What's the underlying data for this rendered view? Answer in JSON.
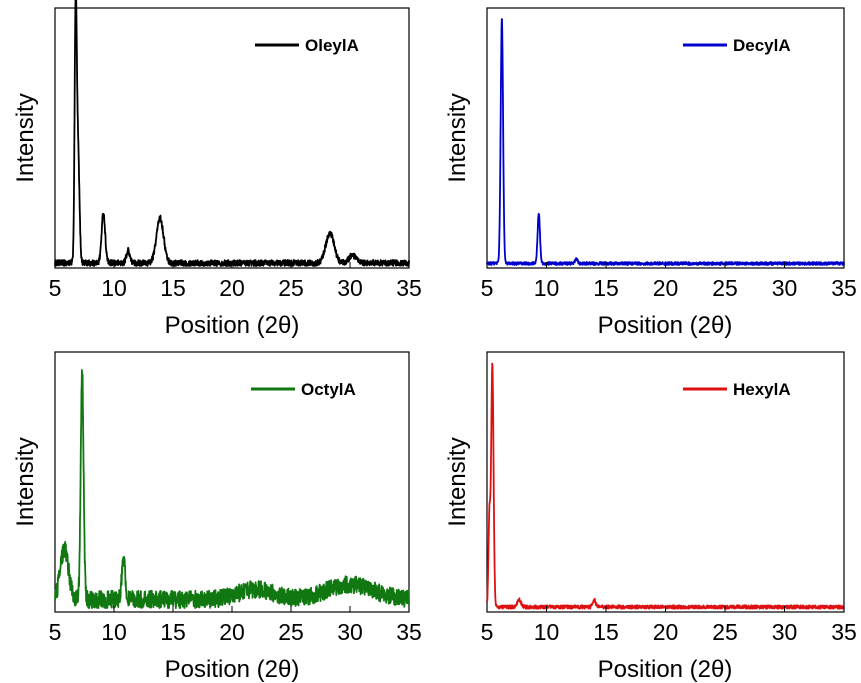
{
  "chart_data": [
    {
      "type": "line",
      "xlabel": "Position (2θ)",
      "ylabel": "Intensity",
      "xlim": [
        5,
        35
      ],
      "ylim": [
        0,
        1
      ],
      "x_ticks": [
        5,
        10,
        15,
        20,
        25,
        30,
        35
      ],
      "y_ticks_shown": false,
      "grid": false,
      "legend_position": "top-right",
      "series": [
        {
          "name": "OleylA",
          "color": "#000000",
          "baseline": 0.02,
          "noise": 0.012,
          "peaks": [
            {
              "x": 6.75,
              "y": 0.98,
              "w": 0.09
            },
            {
              "x": 6.95,
              "y": 0.45,
              "w": 0.12
            },
            {
              "x": 9.1,
              "y": 0.2,
              "w": 0.15
            },
            {
              "x": 11.2,
              "y": 0.05,
              "w": 0.15
            },
            {
              "x": 13.9,
              "y": 0.18,
              "w": 0.3
            },
            {
              "x": 28.3,
              "y": 0.12,
              "w": 0.35
            },
            {
              "x": 30.2,
              "y": 0.03,
              "w": 0.3
            }
          ]
        }
      ]
    },
    {
      "type": "line",
      "xlabel": "Position (2θ)",
      "ylabel": "Intensity",
      "xlim": [
        5,
        35
      ],
      "ylim": [
        0,
        1
      ],
      "x_ticks": [
        5,
        10,
        15,
        20,
        25,
        30,
        35
      ],
      "y_ticks_shown": false,
      "grid": false,
      "legend_position": "top-right",
      "series": [
        {
          "name": "DecylA",
          "color": "#0000cc",
          "baseline": 0.018,
          "noise": 0.006,
          "peaks": [
            {
              "x": 6.25,
              "y": 0.98,
              "w": 0.1
            },
            {
              "x": 9.35,
              "y": 0.2,
              "w": 0.1
            },
            {
              "x": 12.5,
              "y": 0.02,
              "w": 0.1
            }
          ]
        }
      ]
    },
    {
      "type": "line",
      "xlabel": "Position (2θ)",
      "ylabel": "Intensity",
      "xlim": [
        5,
        35
      ],
      "ylim": [
        0,
        1
      ],
      "x_ticks": [
        5,
        10,
        15,
        20,
        25,
        30,
        35
      ],
      "y_ticks_shown": false,
      "grid": false,
      "legend_position": "top-right",
      "series": [
        {
          "name": "OctylA",
          "color": "#117711",
          "baseline": 0.05,
          "noise": 0.035,
          "peaks": [
            {
              "x": 5.8,
              "y": 0.2,
              "w": 0.35
            },
            {
              "x": 7.3,
              "y": 0.92,
              "w": 0.12
            },
            {
              "x": 10.8,
              "y": 0.16,
              "w": 0.15
            },
            {
              "x": 22.0,
              "y": 0.04,
              "w": 1.5
            },
            {
              "x": 30.0,
              "y": 0.06,
              "w": 2.0
            }
          ]
        }
      ]
    },
    {
      "type": "line",
      "xlabel": "Position (2θ)",
      "ylabel": "Intensity",
      "xlim": [
        5,
        35
      ],
      "ylim": [
        0,
        1
      ],
      "x_ticks": [
        5,
        10,
        15,
        20,
        25,
        30,
        35
      ],
      "y_ticks_shown": false,
      "grid": false,
      "legend_position": "top-right",
      "series": [
        {
          "name": "HexylA",
          "color": "#dd1111",
          "baseline": 0.02,
          "noise": 0.007,
          "peaks": [
            {
              "x": 5.2,
              "y": 0.36,
              "w": 0.08
            },
            {
              "x": 5.45,
              "y": 0.97,
              "w": 0.1
            },
            {
              "x": 7.7,
              "y": 0.03,
              "w": 0.15
            },
            {
              "x": 14.0,
              "y": 0.03,
              "w": 0.12
            }
          ]
        }
      ]
    }
  ]
}
